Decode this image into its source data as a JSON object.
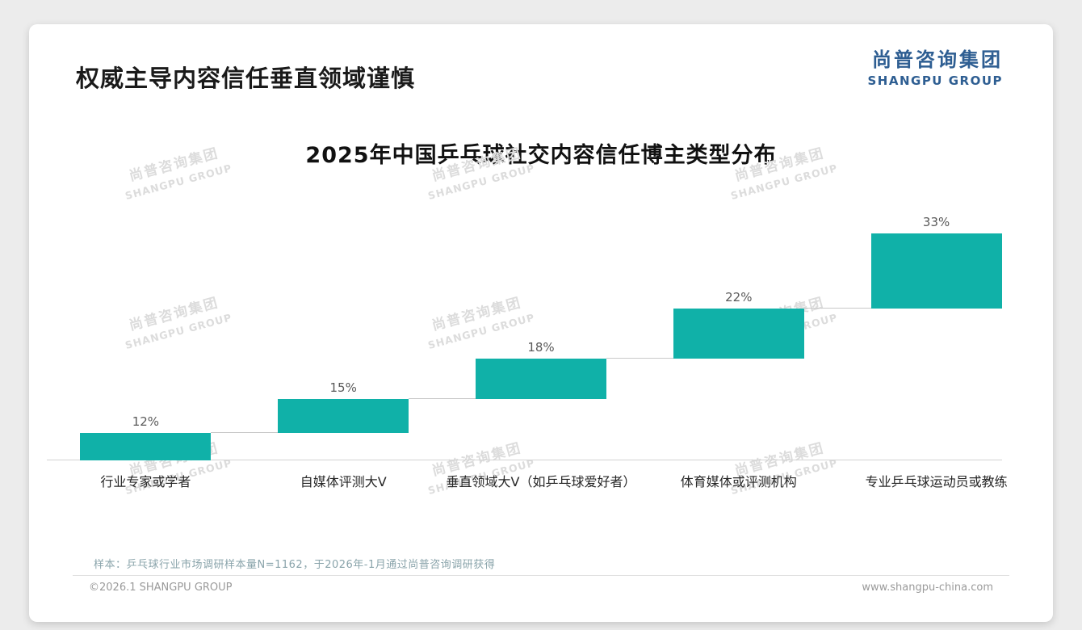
{
  "slide": {
    "title": "权威主导内容信任垂直领域谨慎",
    "logo": {
      "cn": "尚普咨询集团",
      "en": "SHANGPU GROUP"
    },
    "watermark": {
      "cn": "尚普咨询集团",
      "en": "SHANGPU GROUP"
    },
    "footnote": "样本：乒乓球行业市场调研样本量N=1162，于2026年-1月通过尚普咨询调研获得",
    "footer": {
      "left": "©2026.1 SHANGPU GROUP",
      "right": "www.shangpu-china.com"
    }
  },
  "chart_data": {
    "type": "bar",
    "subtype": "stepped-waterfall",
    "title": "2025年中国乒乓球社交内容信任博主类型分布",
    "categories": [
      "行业专家或学者",
      "自媒体评测大V",
      "垂直领域大V（如乒乓球爱好者）",
      "体育媒体或评测机构",
      "专业乒乓球运动员或教练"
    ],
    "values": [
      12,
      15,
      18,
      22,
      33
    ],
    "value_labels": [
      "12%",
      "15%",
      "18%",
      "22%",
      "33%"
    ],
    "unit": "%",
    "ylim": [
      0,
      100
    ],
    "bar_color": "#10b1a8",
    "grid": false,
    "legend": false,
    "note": "each bar starts at the cumulative sum of the previous bars; cumulative total = 100%"
  }
}
